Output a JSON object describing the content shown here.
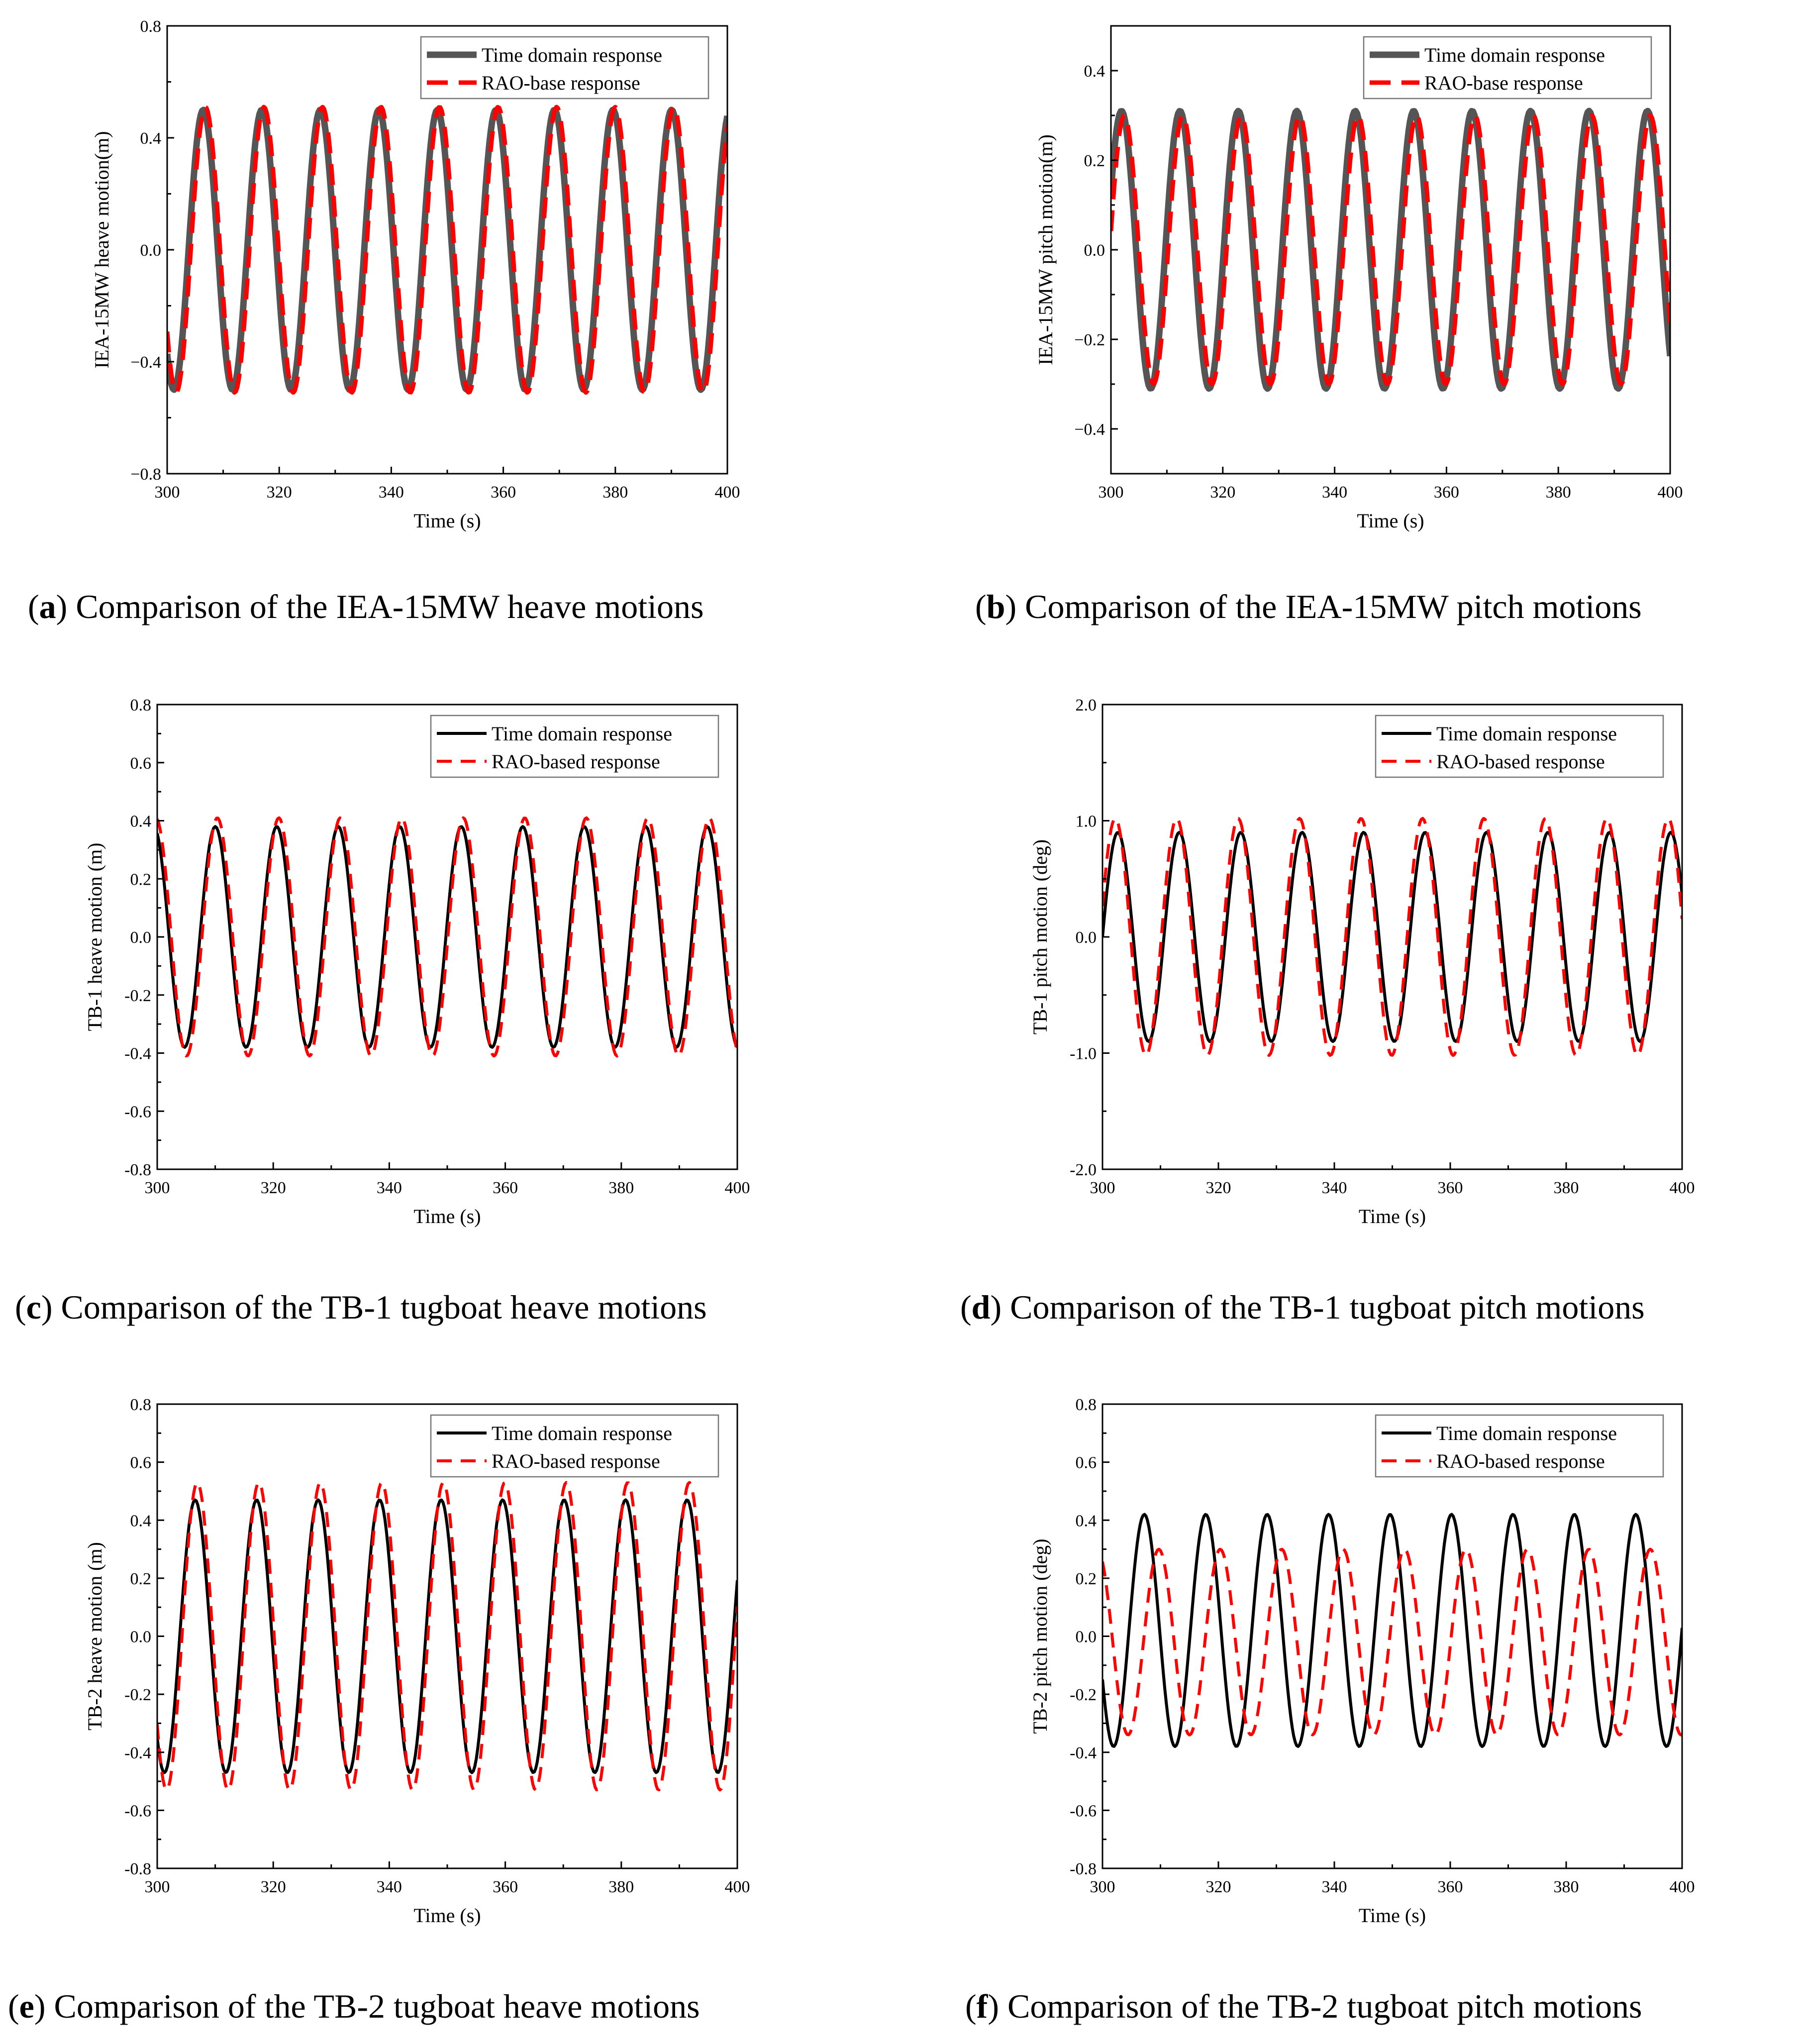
{
  "chart_data": [
    {
      "id": "a",
      "type": "line",
      "caption": {
        "letter": "a",
        "text": "Comparison of the IEA-15MW heave motions"
      },
      "xlabel": "Time (s)",
      "ylabel": "IEA-15MW heave motion(m)",
      "xlim": [
        300,
        400
      ],
      "ylim": [
        -0.8,
        0.8
      ],
      "xticks": [
        300,
        320,
        340,
        360,
        380,
        400
      ],
      "xtick_labels": [
        "300",
        "320",
        "340",
        "360",
        "380",
        "400"
      ],
      "yticks": [
        -0.8,
        -0.4,
        0.0,
        0.4,
        0.8
      ],
      "ytick_labels": [
        "−0.8",
        "−0.4",
        "0.0",
        "0.4",
        "0.8"
      ],
      "legend_position": "top-right",
      "series": [
        {
          "name": "Time domain response",
          "color": "#555555",
          "style": "solid",
          "amplitude": 0.5,
          "period": 10.45,
          "phase_deg": 228,
          "sample_step": 0.25
        },
        {
          "name": "RAO-base response",
          "color": "#ff0000",
          "style": "dashed",
          "amplitude": 0.51,
          "period": 10.45,
          "phase_deg": 215,
          "sample_step": 0.25
        }
      ]
    },
    {
      "id": "b",
      "type": "line",
      "caption": {
        "letter": "b",
        "text": "Comparison of the IEA-15MW pitch motions"
      },
      "xlabel": "Time (s)",
      "ylabel": "IEA-15MW pitch motion(m)",
      "xlim": [
        300,
        400
      ],
      "ylim": [
        -0.5,
        0.5
      ],
      "xticks": [
        300,
        320,
        340,
        360,
        380,
        400
      ],
      "xtick_labels": [
        "300",
        "320",
        "340",
        "360",
        "380",
        "400"
      ],
      "yticks": [
        -0.4,
        -0.2,
        0.0,
        0.2,
        0.4
      ],
      "ytick_labels": [
        "−0.4",
        "−0.2",
        "0.0",
        "0.2",
        "0.4"
      ],
      "legend_position": "top-right",
      "series": [
        {
          "name": "Time domain response",
          "color": "#555555",
          "style": "solid",
          "amplitude": 0.31,
          "period": 10.45,
          "phase_deg": 25,
          "sample_step": 0.25
        },
        {
          "name": "RAO-base response",
          "color": "#ff0000",
          "style": "dashed",
          "amplitude": 0.3,
          "period": 10.45,
          "phase_deg": 8,
          "sample_step": 0.25
        }
      ]
    },
    {
      "id": "c",
      "type": "line",
      "caption": {
        "letter": "c",
        "text": "Comparison of the TB-1 tugboat heave motions"
      },
      "xlabel": "Time (s)",
      "ylabel": "TB-1 heave motion (m)",
      "xlim": [
        300,
        400
      ],
      "ylim": [
        -0.8,
        0.8
      ],
      "xticks": [
        300,
        320,
        340,
        360,
        380,
        400
      ],
      "xtick_labels": [
        "300",
        "320",
        "340",
        "360",
        "380",
        "400"
      ],
      "yticks": [
        -0.8,
        -0.6,
        -0.4,
        -0.2,
        0.0,
        0.2,
        0.4,
        0.6,
        0.8
      ],
      "ytick_labels": [
        "-0.8",
        "-0.6",
        "-0.4",
        "-0.2",
        "0.0",
        "0.2",
        "0.4",
        "0.6",
        "0.8"
      ],
      "legend_position": "top-right",
      "series": [
        {
          "name": "Time domain response",
          "color": "#000000",
          "style": "solid",
          "amplitude": 0.38,
          "period": 10.6,
          "phase_deg": 110,
          "sample_step": 0.25
        },
        {
          "name": "RAO-based response",
          "color": "#ff0000",
          "style": "dashed",
          "amplitude": 0.41,
          "period": 10.6,
          "phase_deg": 98,
          "sample_step": 0.25
        }
      ]
    },
    {
      "id": "d",
      "type": "line",
      "caption": {
        "letter": "d",
        "text": "Comparison of the TB-1 tugboat pitch motions"
      },
      "xlabel": "Time (s)",
      "ylabel": "TB-1 pitch motion (deg)",
      "xlim": [
        300,
        400
      ],
      "ylim": [
        -2.0,
        2.0
      ],
      "xticks": [
        300,
        320,
        340,
        360,
        380,
        400
      ],
      "xtick_labels": [
        "300",
        "320",
        "340",
        "360",
        "380",
        "400"
      ],
      "yticks": [
        -2.0,
        -1.0,
        0.0,
        1.0,
        2.0
      ],
      "ytick_labels": [
        "-2.0",
        "-1.0",
        "0.0",
        "1.0",
        "2.0"
      ],
      "legend_position": "top-right",
      "series": [
        {
          "name": "Time domain response",
          "color": "#000000",
          "style": "solid",
          "amplitude": 0.9,
          "period": 10.6,
          "phase_deg": 0,
          "sample_step": 0.25
        },
        {
          "name": "RAO-based response",
          "color": "#ff0000",
          "style": "dashed",
          "amplitude": 1.02,
          "period": 10.6,
          "phase_deg": 15,
          "sample_step": 0.25
        }
      ]
    },
    {
      "id": "e",
      "type": "line",
      "caption": {
        "letter": "e",
        "text": "Comparison of the TB-2 tugboat heave motions"
      },
      "xlabel": "Time (s)",
      "ylabel": "TB-2 heave motion (m)",
      "xlim": [
        300,
        400
      ],
      "ylim": [
        -0.8,
        0.8
      ],
      "xticks": [
        300,
        320,
        340,
        360,
        380,
        400
      ],
      "xtick_labels": [
        "300",
        "320",
        "340",
        "360",
        "380",
        "400"
      ],
      "yticks": [
        -0.8,
        -0.6,
        -0.4,
        -0.2,
        0.0,
        0.2,
        0.4,
        0.6,
        0.8
      ],
      "ytick_labels": [
        "-0.8",
        "-0.6",
        "-0.4",
        "-0.2",
        "0.0",
        "0.2",
        "0.4",
        "0.6",
        "0.8"
      ],
      "legend_position": "top-right",
      "series": [
        {
          "name": "Time domain response",
          "color": "#000000",
          "style": "solid",
          "amplitude": 0.47,
          "period": 10.6,
          "phase_deg": 228,
          "sample_step": 0.25
        },
        {
          "name": "RAO-based response",
          "color": "#ff0000",
          "style": "dashed",
          "amplitude": 0.53,
          "period": 10.6,
          "phase_deg": 215,
          "sample_step": 0.25
        }
      ]
    },
    {
      "id": "f",
      "type": "line",
      "caption": {
        "letter": "f",
        "text": "Comparison of the TB-2 tugboat pitch motions"
      },
      "xlabel": "Time (s)",
      "ylabel": "TB-2 pitch motion (deg)",
      "xlim": [
        300,
        400
      ],
      "ylim": [
        -0.8,
        0.8
      ],
      "xticks": [
        300,
        320,
        340,
        360,
        380,
        400
      ],
      "xtick_labels": [
        "300",
        "320",
        "340",
        "360",
        "380",
        "400"
      ],
      "yticks": [
        -0.8,
        -0.6,
        -0.4,
        -0.2,
        0.0,
        0.2,
        0.4,
        0.6,
        0.8
      ],
      "ytick_labels": [
        "-0.8",
        "-0.6",
        "-0.4",
        "-0.2",
        "0.0",
        "0.2",
        "0.4",
        "0.6",
        "0.8"
      ],
      "legend_position": "top-right",
      "series": [
        {
          "name": "Time domain response",
          "color": "#000000",
          "style": "solid",
          "amplitude": 0.4,
          "offset": 0.02,
          "period": 10.6,
          "phase_deg": 205,
          "sample_step": 0.25
        },
        {
          "name": "RAO-based response",
          "color": "#ff0000",
          "style": "dashed",
          "amplitude": 0.32,
          "offset": -0.02,
          "period": 10.6,
          "phase_deg": 120,
          "sample_step": 0.25
        }
      ]
    }
  ]
}
